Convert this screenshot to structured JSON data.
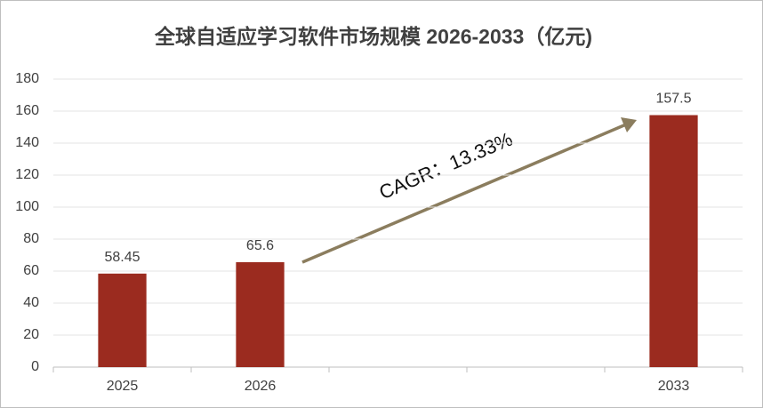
{
  "chart_data": {
    "type": "bar",
    "title": "全球自适应学习软件市场规模 2026-2033（亿元)",
    "categories": [
      "2025",
      "2026",
      null,
      null,
      "2033"
    ],
    "values": [
      58.45,
      65.6,
      null,
      null,
      157.5
    ],
    "color": "#9b2b1f",
    "ylim": [
      0,
      180
    ],
    "yticks": [
      0,
      20,
      40,
      60,
      80,
      100,
      120,
      140,
      160,
      180
    ],
    "grid": true,
    "annotation": "CAGR：13.33%"
  }
}
